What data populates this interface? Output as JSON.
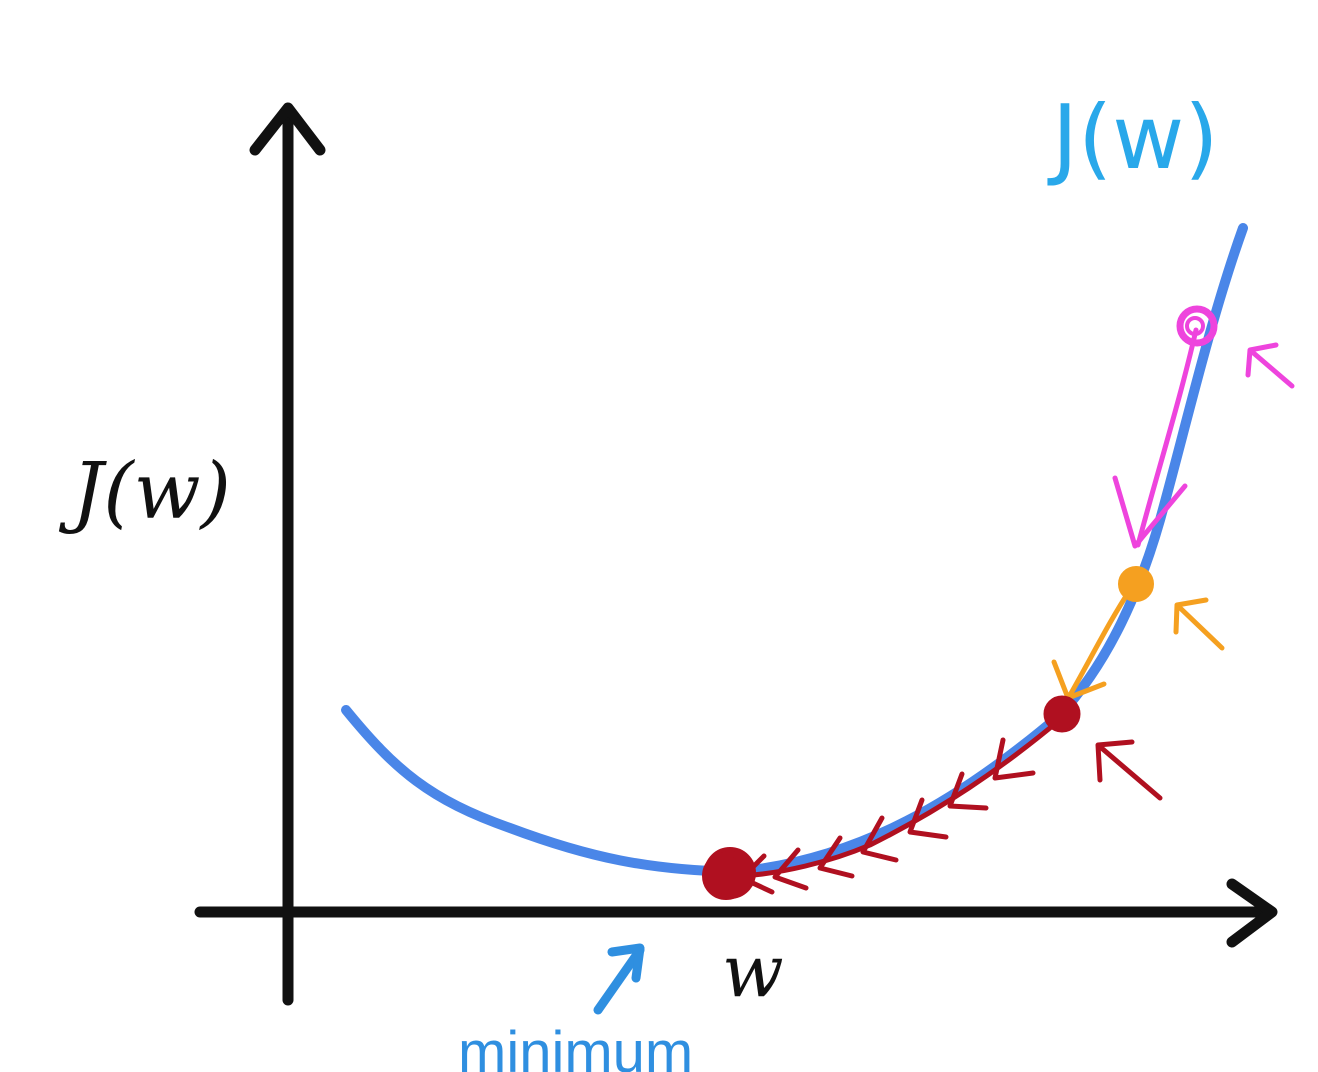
{
  "labels": {
    "y_axis": "J(w)",
    "x_axis": "w",
    "curve": "J(w)",
    "minimum": "minimum"
  },
  "colors": {
    "axis": "#111111",
    "curve": "#4a86e8",
    "curve_label": "#29a8ea",
    "minimum": "#2f8fe0",
    "step_1": "#ee44dd",
    "step_2": "#f5a020",
    "step_3": "#b01020",
    "background": "#ffffff"
  },
  "diagram": {
    "type": "gradient-descent",
    "markers": [
      {
        "name": "start-point",
        "color": "step_1"
      },
      {
        "name": "second-point",
        "color": "step_2"
      },
      {
        "name": "third-point",
        "color": "step_3"
      },
      {
        "name": "minimum-point",
        "color": "step_3"
      }
    ]
  }
}
